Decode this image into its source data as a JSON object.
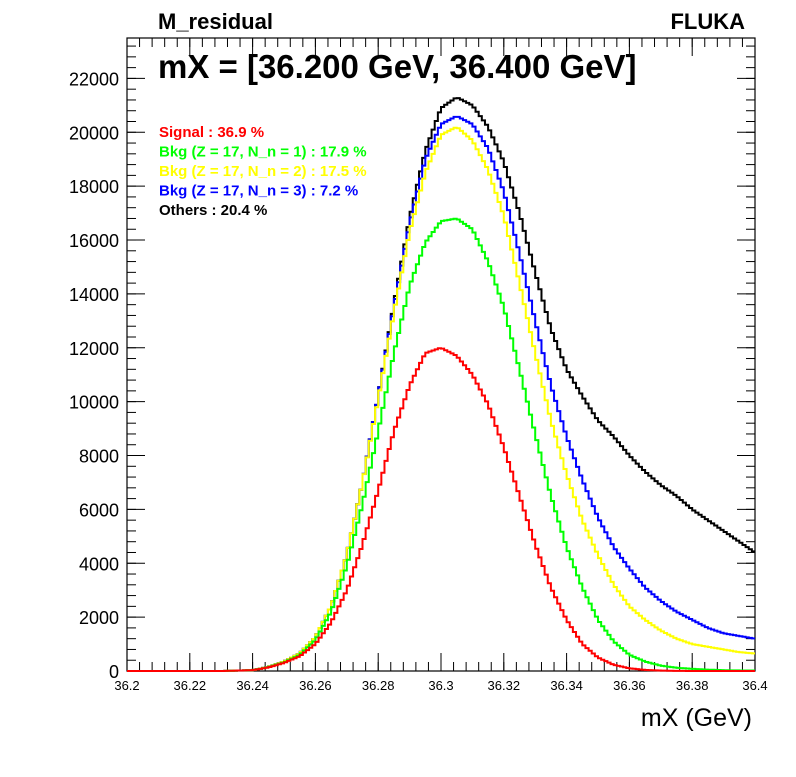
{
  "header": {
    "left_title": "M_residual",
    "right_title": "FLUKA"
  },
  "chart_data": {
    "type": "line",
    "title": "mX = [36.200 GeV, 36.400 GeV]",
    "xlabel": "mX (GeV)",
    "ylabel": "",
    "xlim": [
      36.2,
      36.4
    ],
    "ylim": [
      0,
      23500
    ],
    "grid": false,
    "legend_position": "top-left",
    "x_ticks": [
      "36.2",
      "36.22",
      "36.24",
      "36.26",
      "36.28",
      "36.3",
      "36.32",
      "36.34",
      "36.36",
      "36.38",
      "36.4"
    ],
    "y_ticks": [
      "0",
      "2000",
      "4000",
      "6000",
      "8000",
      "10000",
      "12000",
      "14000",
      "16000",
      "18000",
      "20000",
      "22000"
    ],
    "x": [
      36.2,
      36.21,
      36.22,
      36.23,
      36.24,
      36.245,
      36.25,
      36.255,
      36.26,
      36.265,
      36.27,
      36.275,
      36.28,
      36.285,
      36.29,
      36.295,
      36.3,
      36.305,
      36.31,
      36.315,
      36.32,
      36.325,
      36.33,
      36.335,
      36.34,
      36.345,
      36.35,
      36.355,
      36.36,
      36.365,
      36.37,
      36.375,
      36.38,
      36.385,
      36.39,
      36.395,
      36.4
    ],
    "series": [
      {
        "name": "Others : 20.4 %",
        "color": "#000000",
        "values": [
          0,
          0,
          0,
          0,
          30,
          150,
          350,
          650,
          1250,
          2400,
          4300,
          7000,
          10200,
          13600,
          16800,
          19300,
          20900,
          21300,
          21000,
          20200,
          18900,
          17000,
          14800,
          12700,
          11200,
          10200,
          9300,
          8700,
          8000,
          7400,
          6900,
          6500,
          6000,
          5600,
          5200,
          4800,
          4400
        ]
      },
      {
        "name": "Bkg (Z = 17, N_n = 3) : 7.2 %",
        "color": "#0000ff",
        "values": [
          0,
          0,
          0,
          0,
          30,
          150,
          350,
          650,
          1250,
          2400,
          4300,
          7000,
          10200,
          13500,
          16600,
          19000,
          20300,
          20600,
          20300,
          19400,
          17800,
          15500,
          13000,
          10600,
          8700,
          7100,
          5700,
          4600,
          3800,
          3100,
          2600,
          2200,
          1900,
          1600,
          1400,
          1300,
          1200
        ]
      },
      {
        "name": "Bkg (Z = 17, N_n = 2) : 17.5 %",
        "color": "#ffff00",
        "values": [
          0,
          0,
          0,
          0,
          30,
          150,
          350,
          650,
          1250,
          2400,
          4300,
          7000,
          10100,
          13300,
          16300,
          18500,
          19900,
          20200,
          19700,
          18600,
          16900,
          14400,
          11800,
          9300,
          7300,
          5600,
          4300,
          3200,
          2400,
          1900,
          1500,
          1200,
          1000,
          900,
          800,
          700,
          650
        ]
      },
      {
        "name": "Bkg (Z = 17, N_n = 1) : 17.9 %",
        "color": "#00ff00",
        "values": [
          0,
          0,
          0,
          0,
          30,
          140,
          320,
          600,
          1150,
          2200,
          3900,
          6200,
          8900,
          11800,
          14300,
          15900,
          16700,
          16800,
          16400,
          15200,
          13500,
          11200,
          8800,
          6500,
          4600,
          3100,
          1900,
          1100,
          600,
          350,
          200,
          120,
          80,
          50,
          30,
          20,
          20
        ]
      },
      {
        "name": "Signal : 36.9 %",
        "color": "#ff0000",
        "values": [
          0,
          0,
          0,
          0,
          30,
          130,
          300,
          550,
          1000,
          1800,
          3000,
          4700,
          6700,
          8900,
          10600,
          11800,
          12000,
          11700,
          11000,
          9900,
          8300,
          6500,
          4700,
          3100,
          1900,
          1000,
          500,
          230,
          100,
          40,
          15,
          5,
          0,
          0,
          0,
          0,
          0
        ]
      }
    ]
  }
}
